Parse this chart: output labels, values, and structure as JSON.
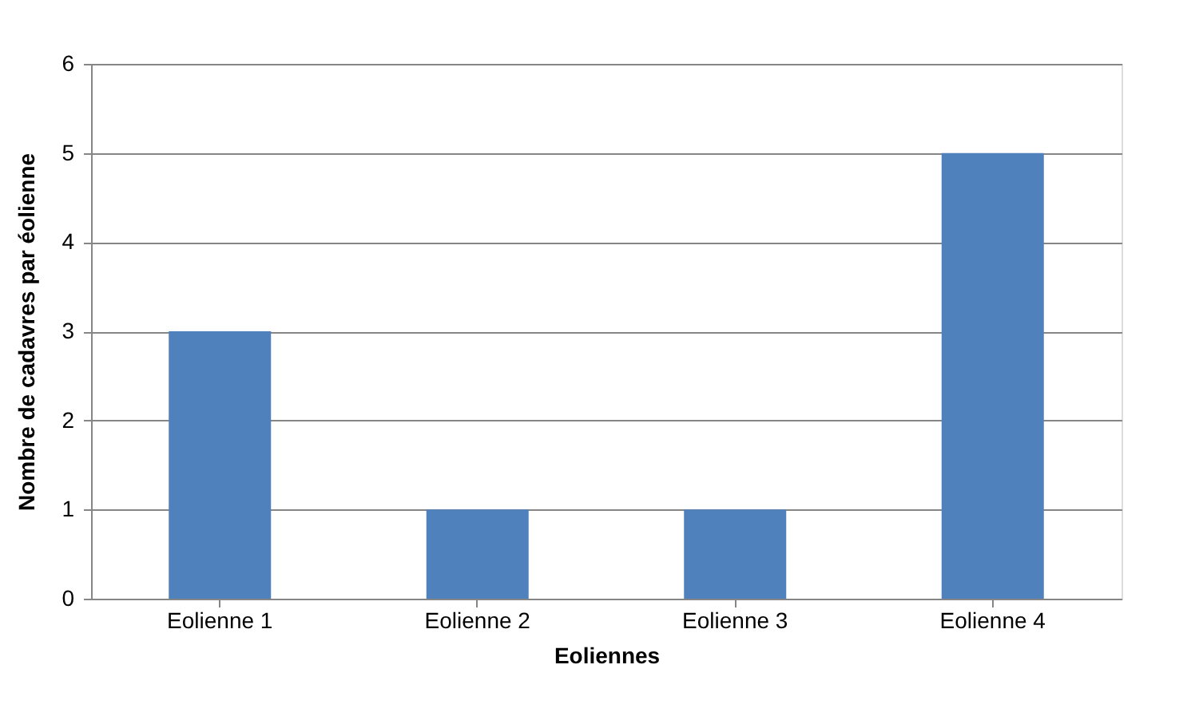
{
  "chart_data": {
    "type": "bar",
    "categories": [
      "Eolienne 1",
      "Eolienne 2",
      "Eolienne 3",
      "Eolienne 4"
    ],
    "values": [
      3,
      1,
      1,
      5
    ],
    "color": "#4f81bd",
    "xlabel": "Eoliennes",
    "ylabel": "Nombre de cadavres par éolienne",
    "ylim": [
      0,
      6
    ],
    "yticks": [
      0,
      1,
      2,
      3,
      4,
      5,
      6
    ],
    "grid": "y"
  }
}
